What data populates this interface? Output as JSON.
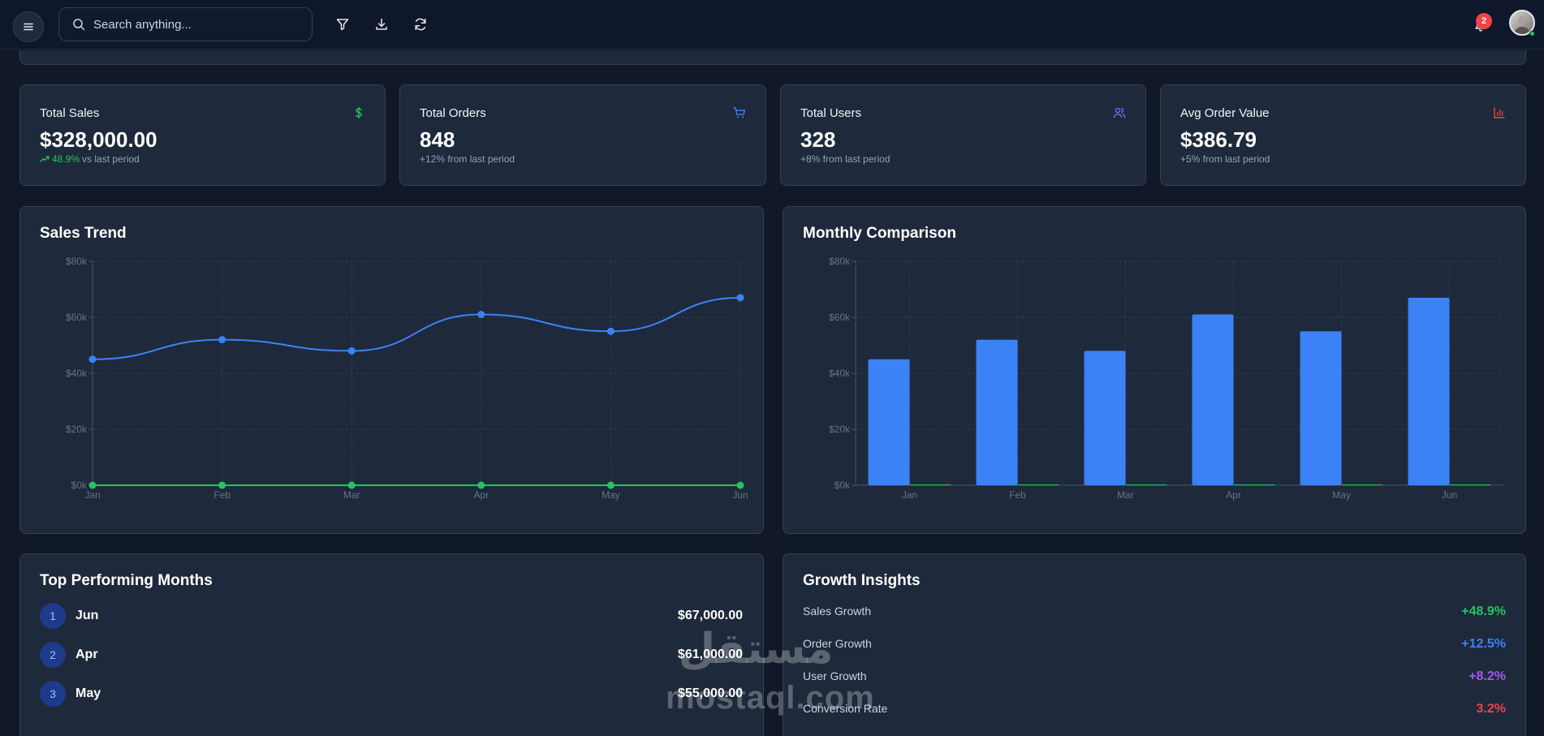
{
  "search": {
    "placeholder": "Search anything..."
  },
  "notifications": {
    "count": "2"
  },
  "stats": [
    {
      "title": "Total Sales",
      "value": "$328,000.00",
      "change": "48.9%",
      "sub": "vs last period",
      "icon": "dollar-icon",
      "color": "#22c55e"
    },
    {
      "title": "Total Orders",
      "value": "848",
      "sub": "+12% from last period",
      "icon": "cart-icon",
      "color": "#3b82f6"
    },
    {
      "title": "Total Users",
      "value": "328",
      "sub": "+8% from last period",
      "icon": "users-icon",
      "color": "#8b5cf6"
    },
    {
      "title": "Avg Order Value",
      "value": "$386.79",
      "sub": "+5% from last period",
      "icon": "bar-chart-icon",
      "color": "#ef4444"
    }
  ],
  "sales_trend": {
    "title": "Sales Trend"
  },
  "monthly_comparison": {
    "title": "Monthly Comparison"
  },
  "chart_data": [
    {
      "type": "line",
      "title": "Sales Trend",
      "categories": [
        "Jan",
        "Feb",
        "Mar",
        "Apr",
        "May",
        "Jun"
      ],
      "series": [
        {
          "values": [
            45000,
            52000,
            48000,
            61000,
            55000,
            67000
          ],
          "color": "#3b82f6"
        },
        {
          "values": [
            0,
            0,
            0,
            0,
            0,
            0
          ],
          "color": "#22c55e"
        }
      ],
      "yticks": [
        "$0k",
        "$20k",
        "$40k",
        "$60k",
        "$80k"
      ],
      "ylim": [
        0,
        80000
      ],
      "grid": true
    },
    {
      "type": "bar",
      "title": "Monthly Comparison",
      "categories": [
        "Jan",
        "Feb",
        "Mar",
        "Apr",
        "May",
        "Jun"
      ],
      "series": [
        {
          "values": [
            45000,
            52000,
            48000,
            61000,
            55000,
            67000
          ],
          "color": "#3b82f6"
        },
        {
          "values": [
            0,
            0,
            0,
            0,
            0,
            0
          ],
          "color": "#22c55e"
        }
      ],
      "yticks": [
        "$0k",
        "$20k",
        "$40k",
        "$60k",
        "$80k"
      ],
      "ylim": [
        0,
        80000
      ],
      "grid": true
    }
  ],
  "top_months": {
    "title": "Top Performing Months",
    "items": [
      {
        "rank": "1",
        "month": "Jun",
        "value": "$67,000.00"
      },
      {
        "rank": "2",
        "month": "Apr",
        "value": "$61,000.00"
      },
      {
        "rank": "3",
        "month": "May",
        "value": "$55,000.00"
      }
    ]
  },
  "growth_insights": {
    "title": "Growth Insights",
    "items": [
      {
        "label": "Sales Growth",
        "value": "+48.9%",
        "color": "#22c55e"
      },
      {
        "label": "Order Growth",
        "value": "+12.5%",
        "color": "#3b82f6"
      },
      {
        "label": "User Growth",
        "value": "+8.2%",
        "color": "#a855f7"
      },
      {
        "label": "Conversion Rate",
        "value": "3.2%",
        "color": "#ef4444"
      }
    ]
  },
  "watermark": {
    "latin": "mostaql.com",
    "arabic": "مستقل"
  }
}
